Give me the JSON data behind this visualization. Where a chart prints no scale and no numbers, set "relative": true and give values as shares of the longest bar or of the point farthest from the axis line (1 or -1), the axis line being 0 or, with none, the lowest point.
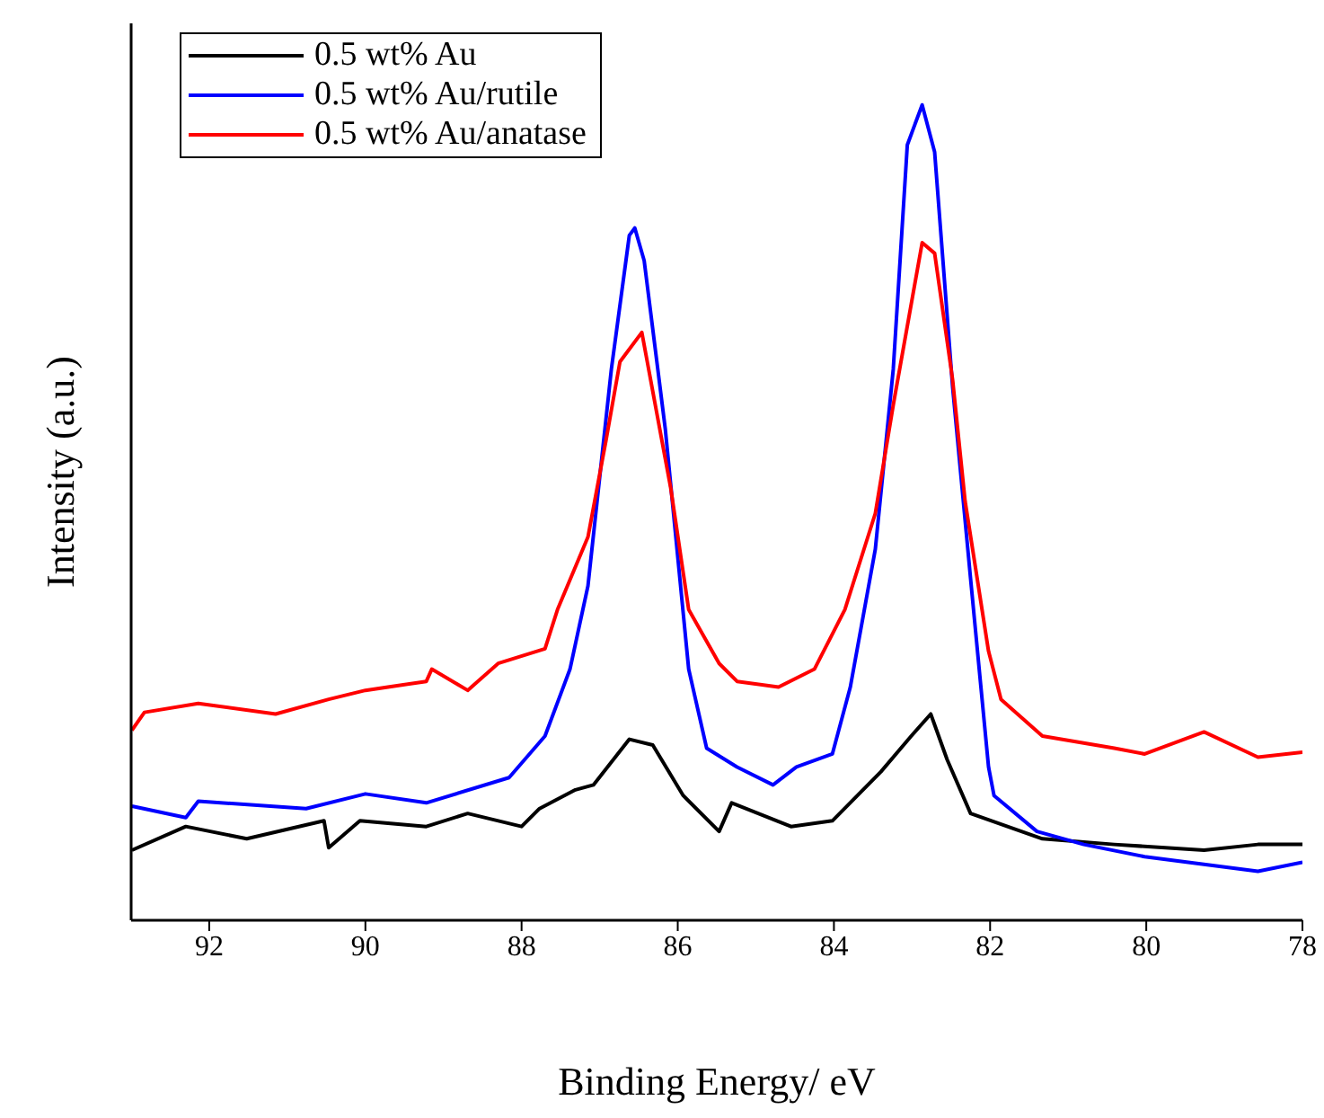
{
  "chart_data": {
    "type": "line",
    "xlabel": "Binding Energy/ eV",
    "ylabel": "Intensity (a.u.)",
    "relative": true,
    "xlim": [
      93,
      78
    ],
    "xticks": [
      92,
      90,
      88,
      86,
      84,
      82,
      80,
      78
    ],
    "legend": "top left",
    "grid": false,
    "marker": "none",
    "line_style": "solid",
    "series": [
      {
        "name": "0.5 wt% Au",
        "color": "#000000",
        "x": [
          92.99,
          92.3,
          91.52,
          90.53,
          90.47,
          90.07,
          89.22,
          88.69,
          88.0,
          87.77,
          87.31,
          87.08,
          86.62,
          86.32,
          85.93,
          85.47,
          85.31,
          84.55,
          84.02,
          83.4,
          83.01,
          82.76,
          82.55,
          82.25,
          81.33,
          80.41,
          79.26,
          78.57,
          78.0
        ],
        "values": [
          0.086,
          0.115,
          0.1,
          0.122,
          0.089,
          0.122,
          0.115,
          0.131,
          0.115,
          0.137,
          0.16,
          0.166,
          0.222,
          0.215,
          0.153,
          0.109,
          0.144,
          0.115,
          0.122,
          0.182,
          0.226,
          0.253,
          0.197,
          0.131,
          0.1,
          0.093,
          0.086,
          0.093,
          0.093
        ]
      },
      {
        "name": "0.5 wt% Au/rutile",
        "color": "#0000ff",
        "x": [
          92.99,
          92.3,
          92.14,
          90.76,
          90.0,
          89.22,
          88.16,
          87.7,
          87.38,
          87.15,
          86.85,
          86.62,
          86.55,
          86.43,
          86.16,
          85.86,
          85.63,
          85.24,
          84.78,
          84.48,
          84.02,
          83.79,
          83.47,
          83.24,
          83.06,
          82.87,
          82.71,
          82.48,
          82.25,
          82.02,
          81.95,
          81.4,
          80.8,
          80.02,
          78.57,
          78.0
        ],
        "values": [
          0.14,
          0.126,
          0.146,
          0.137,
          0.155,
          0.144,
          0.175,
          0.226,
          0.308,
          0.41,
          0.676,
          0.84,
          0.849,
          0.809,
          0.603,
          0.308,
          0.211,
          0.188,
          0.166,
          0.188,
          0.204,
          0.286,
          0.455,
          0.676,
          0.951,
          1,
          0.942,
          0.654,
          0.419,
          0.188,
          0.153,
          0.109,
          0.093,
          0.078,
          0.06,
          0.071
        ]
      },
      {
        "name": "0.5 wt% Au/anatase",
        "color": "#ff0000",
        "x": [
          92.99,
          92.83,
          92.14,
          91.15,
          90.47,
          90.0,
          89.22,
          89.15,
          88.69,
          88.3,
          87.7,
          87.54,
          87.15,
          86.92,
          86.74,
          86.46,
          86.09,
          85.86,
          85.47,
          85.24,
          84.71,
          84.25,
          83.86,
          83.47,
          83.24,
          82.87,
          82.71,
          82.48,
          82.32,
          82.02,
          81.86,
          81.33,
          80.41,
          80.02,
          79.26,
          78.57,
          78.0
        ],
        "values": [
          0.233,
          0.255,
          0.266,
          0.253,
          0.271,
          0.282,
          0.293,
          0.308,
          0.282,
          0.315,
          0.333,
          0.381,
          0.47,
          0.588,
          0.685,
          0.721,
          0.53,
          0.381,
          0.315,
          0.293,
          0.286,
          0.308,
          0.381,
          0.499,
          0.632,
          0.831,
          0.818,
          0.663,
          0.514,
          0.33,
          0.271,
          0.226,
          0.211,
          0.204,
          0.231,
          0.2,
          0.206
        ]
      }
    ]
  }
}
